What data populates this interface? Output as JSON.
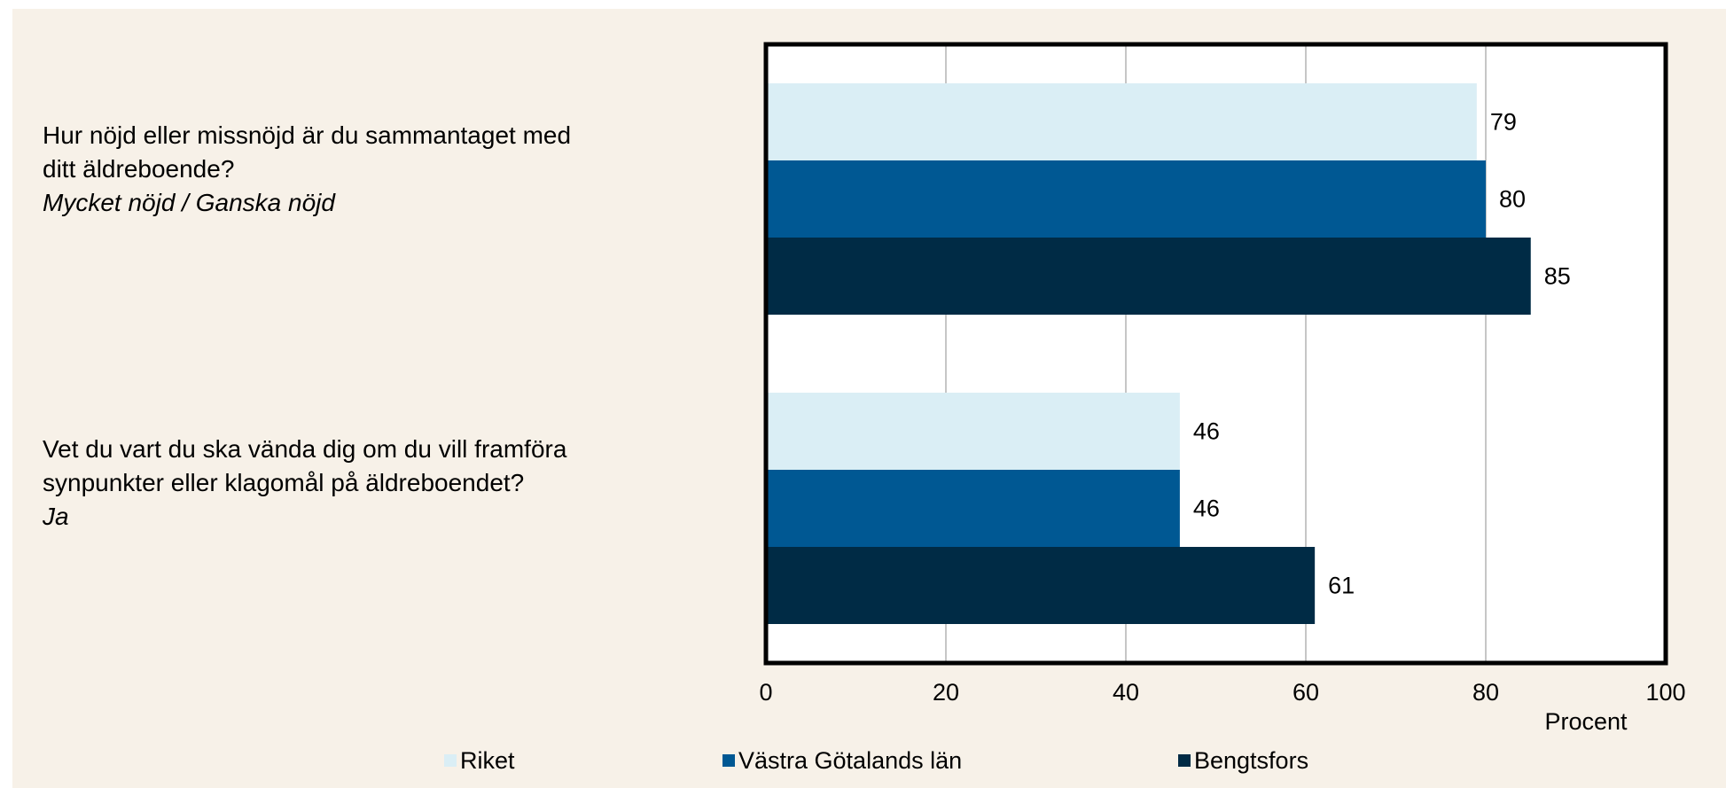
{
  "chart_data": {
    "type": "bar",
    "orientation": "horizontal",
    "categories": [
      {
        "question": "Hur nöjd eller missnöjd är du sammantaget med ditt äldreboende?",
        "answer": "Mycket nöjd / Ganska nöjd"
      },
      {
        "question": "Vet du vart du ska vända dig om du vill framföra synpunkter eller klagomål på äldreboendet?",
        "answer": "Ja"
      }
    ],
    "series": [
      {
        "name": "Riket",
        "values": [
          79,
          46
        ],
        "color": "#daeef5"
      },
      {
        "name": "Västra Götalands län",
        "values": [
          80,
          46
        ],
        "color": "#005893"
      },
      {
        "name": "Bengtsfors",
        "values": [
          85,
          61
        ],
        "color": "#002b45"
      }
    ],
    "xlabel": "Procent",
    "xlim": [
      0,
      100
    ],
    "xticks": [
      0,
      20,
      40,
      60,
      80,
      100
    ],
    "grid": "vertical",
    "legend": "bottom"
  }
}
